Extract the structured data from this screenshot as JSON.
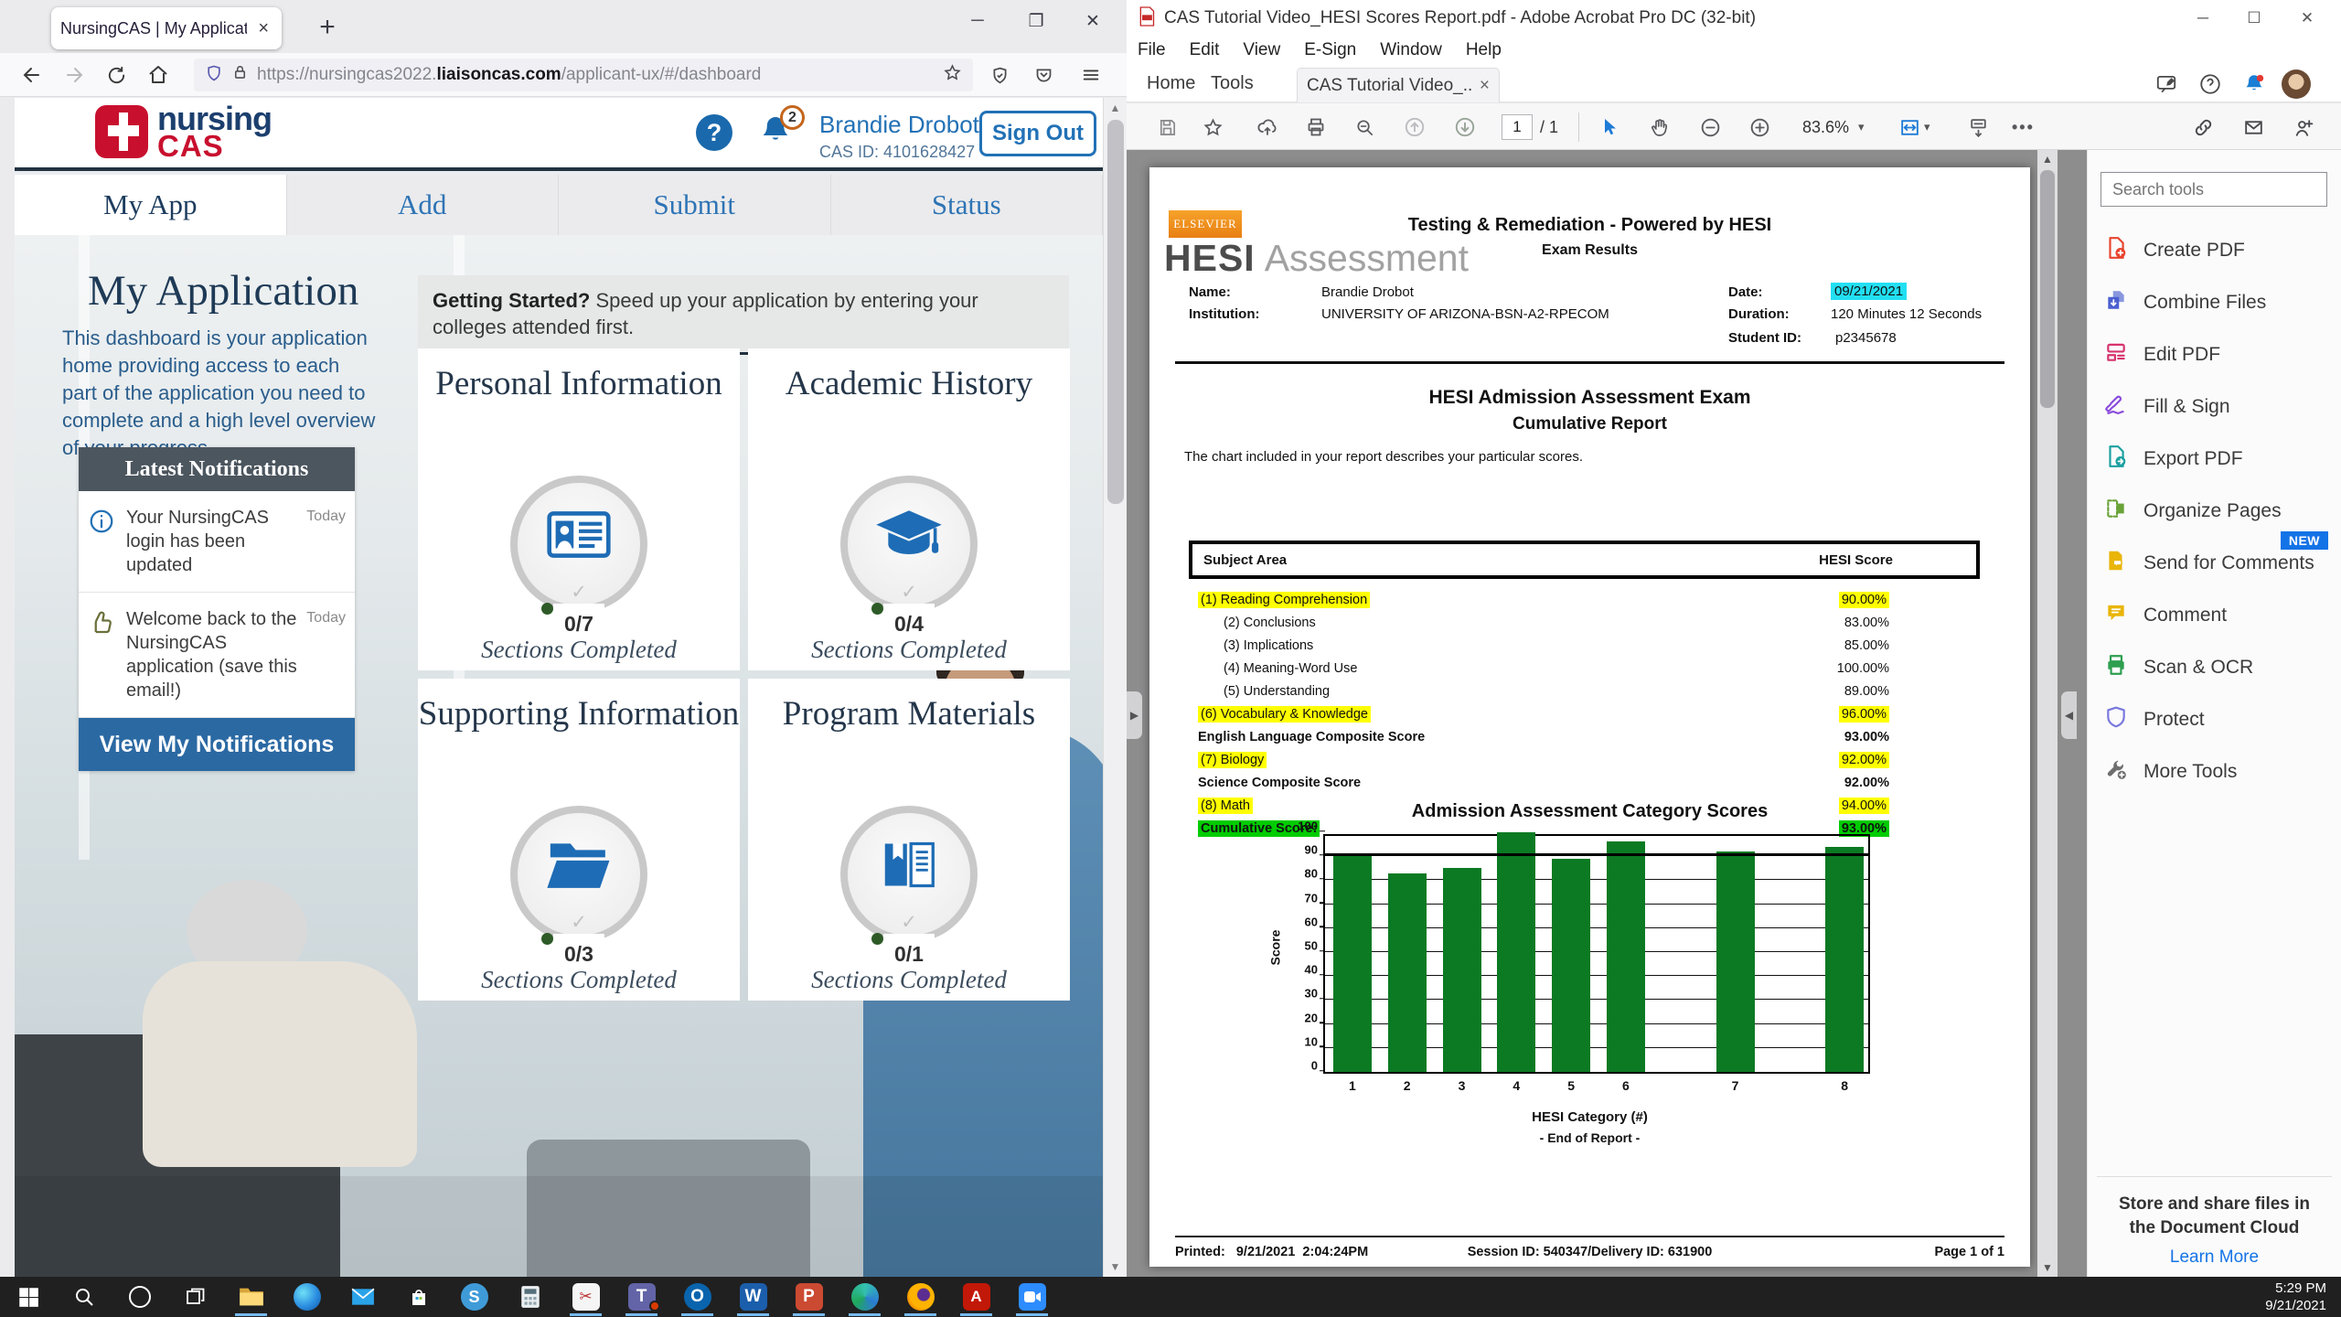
{
  "browser": {
    "tab_title": "NursingCAS | My Application Dashb",
    "url_prefix": "https://nursingcas2022.",
    "url_domain": "liaisoncas.com",
    "url_path": "/applicant-ux/#/dashboard",
    "header": {
      "logo_top": "nursing",
      "logo_bottom": "CAS",
      "notification_count": "2",
      "user_name": "Brandie Drobot",
      "cas_id": "CAS ID: 4101628427",
      "sign_out_label": "Sign Out"
    },
    "nav_tabs": [
      {
        "label": "My App",
        "active": true
      },
      {
        "label": "Add",
        "active": false
      },
      {
        "label": "Submit",
        "active": false
      },
      {
        "label": "Status",
        "active": false
      }
    ],
    "page": {
      "title": "My Application",
      "description": "This dashboard is your application home providing access to each part of the application you need to complete and a high level overview of your progress.",
      "notifications": {
        "title": "Latest Notifications",
        "items": [
          {
            "icon": "info-icon",
            "text": "Your NursingCAS login has been updated",
            "time": "Today"
          },
          {
            "icon": "thumbs-up-icon",
            "text": "Welcome back to the NursingCAS application (save this email!)",
            "time": "Today"
          }
        ],
        "view_all_label": "View My Notifications"
      },
      "getting_started_bold": "Getting Started?",
      "getting_started_text": " Speed up your application by entering your colleges attended first.",
      "cards": [
        {
          "title": "Personal Information",
          "icon": "id-card-icon",
          "progress": "0/7",
          "subtitle": "Sections Completed"
        },
        {
          "title": "Academic History",
          "icon": "graduation-cap-icon",
          "progress": "0/4",
          "subtitle": "Sections Completed"
        },
        {
          "title": "Supporting Information",
          "icon": "folder-icon",
          "progress": "0/3",
          "subtitle": "Sections Completed"
        },
        {
          "title": "Program Materials",
          "icon": "book-icon",
          "progress": "0/1",
          "subtitle": "Sections Completed"
        }
      ]
    }
  },
  "acrobat": {
    "window_title": "CAS Tutorial Video_HESI Scores Report.pdf - Adobe Acrobat Pro DC (32-bit)",
    "menus": [
      "File",
      "Edit",
      "View",
      "E-Sign",
      "Window",
      "Help"
    ],
    "tab_home": "Home",
    "tab_tools": "Tools",
    "tab_document": "CAS Tutorial Video_...",
    "toolbar": {
      "page_current": "1",
      "page_total": "/ 1",
      "zoom_level": "83.6%"
    },
    "tools_panel": {
      "search_placeholder": "Search tools",
      "items": [
        {
          "label": "Create PDF",
          "icon": "create-pdf-icon",
          "color": "#E8432C"
        },
        {
          "label": "Combine Files",
          "icon": "combine-files-icon",
          "color": "#4A5FD0"
        },
        {
          "label": "Edit PDF",
          "icon": "edit-pdf-icon",
          "color": "#D6336C"
        },
        {
          "label": "Fill & Sign",
          "icon": "fill-sign-icon",
          "color": "#8A4BDB"
        },
        {
          "label": "Export PDF",
          "icon": "export-pdf-icon",
          "color": "#1BA0A0"
        },
        {
          "label": "Organize Pages",
          "icon": "organize-pages-icon",
          "color": "#69A338"
        },
        {
          "label": "Send for Comments",
          "icon": "send-comments-icon",
          "color": "#E9B508",
          "badge": "NEW"
        },
        {
          "label": "Comment",
          "icon": "comment-icon",
          "color": "#E9B508"
        },
        {
          "label": "Scan & OCR",
          "icon": "scan-ocr-icon",
          "color": "#2E9E4F"
        },
        {
          "label": "Protect",
          "icon": "protect-icon",
          "color": "#7878DE"
        },
        {
          "label": "More Tools",
          "icon": "more-tools-icon",
          "color": "#6E6E6E"
        }
      ],
      "footer_text": "Store and share files in the Document Cloud",
      "footer_link": "Learn More"
    },
    "pdf": {
      "elsevier": "ELSEVIER",
      "brand_bold": "HESI",
      "brand_light": "Assessment",
      "header_title": "Testing & Remediation - Powered by HESI",
      "header_subtitle": "Exam Results",
      "name_label": "Name:",
      "name_value": "Brandie Drobot",
      "institution_label": "Institution:",
      "institution_value": "UNIVERSITY OF ARIZONA-BSN-A2-RPECOM",
      "date_label": "Date:",
      "date_value": "09/21/2021",
      "duration_label": "Duration:",
      "duration_value": "120 Minutes 12 Seconds",
      "student_id_label": "Student ID:",
      "student_id_value": "p2345678",
      "report_title_line1": "HESI Admission Assessment Exam",
      "report_title_line2": "Cumulative Report",
      "intro_text": "The chart included in your report describes your particular scores.",
      "table": {
        "header_subject": "Subject Area",
        "header_score": "HESI Score",
        "rows": [
          {
            "label": "(1) Reading Comprehension",
            "score": "90.00%",
            "highlight": "yellow",
            "indent": false,
            "bold": false
          },
          {
            "label": "(2) Conclusions",
            "score": "83.00%",
            "highlight": "none",
            "indent": true,
            "bold": false
          },
          {
            "label": "(3) Implications",
            "score": "85.00%",
            "highlight": "none",
            "indent": true,
            "bold": false
          },
          {
            "label": "(4) Meaning-Word Use",
            "score": "100.00%",
            "highlight": "none",
            "indent": true,
            "bold": false
          },
          {
            "label": "(5) Understanding",
            "score": "89.00%",
            "highlight": "none",
            "indent": true,
            "bold": false
          },
          {
            "label": "(6) Vocabulary & Knowledge",
            "score": "96.00%",
            "highlight": "yellow",
            "indent": false,
            "bold": false
          },
          {
            "label": "English Language Composite Score",
            "score": "93.00%",
            "highlight": "none",
            "indent": false,
            "bold": true
          },
          {
            "label": "(7) Biology",
            "score": "92.00%",
            "highlight": "yellow",
            "indent": false,
            "bold": false
          },
          {
            "label": "Science Composite Score",
            "score": "92.00%",
            "highlight": "none",
            "indent": false,
            "bold": true
          },
          {
            "label": "(8) Math",
            "score": "94.00%",
            "highlight": "yellow",
            "indent": false,
            "bold": false
          },
          {
            "label": "Cumulative Score:",
            "score": "93.00%",
            "highlight": "green",
            "indent": false,
            "bold": true
          }
        ]
      },
      "end_note": "- End of Report -",
      "footer_printed": "Printed:   9/21/2021  2:04:24PM",
      "footer_session": "Session ID: 540347/Delivery ID: 631900",
      "footer_page": "Page 1 of 1"
    }
  },
  "chart_data": {
    "type": "bar",
    "title": "Admission Assessment Category Scores",
    "categories": [
      "1",
      "2",
      "3",
      "4",
      "5",
      "6",
      "7",
      "8"
    ],
    "values": [
      90,
      83,
      85,
      100,
      89,
      96,
      92,
      94
    ],
    "xlabel": "HESI Category (#)",
    "ylabel": "Score",
    "ylim": [
      0,
      100
    ],
    "ytick_step": 10,
    "grid": true,
    "legend": false,
    "bar_color": "#0B7A23",
    "reference_line": 90,
    "x_positions_pct": [
      5,
      15,
      25,
      35,
      45,
      55,
      75,
      95
    ]
  },
  "taskbar": {
    "time": "5:29 PM",
    "date": "9/21/2021",
    "icons": [
      {
        "name": "start-button",
        "kind": "start",
        "running": false
      },
      {
        "name": "search-button",
        "kind": "search",
        "running": false
      },
      {
        "name": "cortana-button",
        "kind": "cortana",
        "running": false
      },
      {
        "name": "task-view-button",
        "kind": "taskview",
        "running": false
      },
      {
        "name": "file-explorer-icon",
        "kind": "explorer",
        "running": true
      },
      {
        "name": "edge-icon",
        "kind": "edge",
        "running": false
      },
      {
        "name": "mail-icon",
        "kind": "mail",
        "running": false
      },
      {
        "name": "microsoft-store-icon",
        "kind": "store",
        "running": false
      },
      {
        "name": "skype-icon",
        "kind": "skype",
        "running": false
      },
      {
        "name": "calculator-icon",
        "kind": "calculator",
        "running": false
      },
      {
        "name": "snipping-tool-icon",
        "kind": "snip",
        "running": true
      },
      {
        "name": "teams-icon",
        "kind": "teams",
        "running": true,
        "badge": true
      },
      {
        "name": "outlook-icon",
        "kind": "outlook",
        "running": true
      },
      {
        "name": "word-icon",
        "kind": "word",
        "running": true
      },
      {
        "name": "powerpoint-icon",
        "kind": "powerpoint",
        "running": true
      },
      {
        "name": "edge-beta-icon",
        "kind": "browser2",
        "running": true
      },
      {
        "name": "firefox-icon",
        "kind": "firefox",
        "running": true
      },
      {
        "name": "acrobat-icon",
        "kind": "acrobat",
        "running": true
      },
      {
        "name": "zoom-icon",
        "kind": "zoom",
        "running": true
      }
    ]
  }
}
